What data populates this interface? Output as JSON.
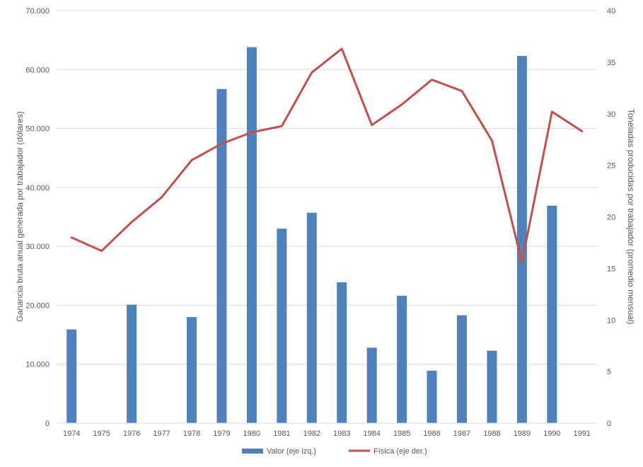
{
  "chart_data": {
    "type": "bar",
    "categories": [
      "1974",
      "1975",
      "1976",
      "1977",
      "1978",
      "1979",
      "1980",
      "1981",
      "1982",
      "1983",
      "1984",
      "1985",
      "1986",
      "1987",
      "1988",
      "1989",
      "1990",
      "1991"
    ],
    "series": [
      {
        "name": "Valor (eje izq.)",
        "type": "bar",
        "axis": "left",
        "color": "#4F81BD",
        "values": [
          15900,
          null,
          20100,
          null,
          18000,
          56700,
          63800,
          33000,
          35700,
          23900,
          12800,
          21600,
          8900,
          18300,
          12300,
          62300,
          36900,
          null
        ]
      },
      {
        "name": "Física (eje der.)",
        "type": "line",
        "axis": "right",
        "color": "#C0504D",
        "values": [
          18.0,
          16.7,
          19.5,
          21.9,
          25.5,
          27.1,
          28.2,
          28.8,
          34.0,
          36.3,
          28.9,
          30.9,
          33.3,
          32.2,
          27.4,
          15.6,
          30.2,
          28.3
        ]
      }
    ],
    "y_left": {
      "label": "Ganancia bruta anual generada por trabajador (dólares)",
      "lim": [
        0,
        70000
      ],
      "ticks": [
        0,
        10000,
        20000,
        30000,
        40000,
        50000,
        60000,
        70000
      ],
      "tick_labels": [
        "0",
        "10.000",
        "20.000",
        "30.000",
        "40.000",
        "50.000",
        "60.000",
        "70.000"
      ]
    },
    "y_right": {
      "label": "Toneladas producidas por trabajador (promedio mensual)",
      "lim": [
        0,
        40
      ],
      "ticks": [
        0,
        5,
        10,
        15,
        20,
        25,
        30,
        35,
        40
      ],
      "tick_labels": [
        "0",
        "5",
        "10",
        "15",
        "20",
        "25",
        "30",
        "35",
        "40"
      ]
    },
    "grid": true,
    "legend": "bottom"
  }
}
